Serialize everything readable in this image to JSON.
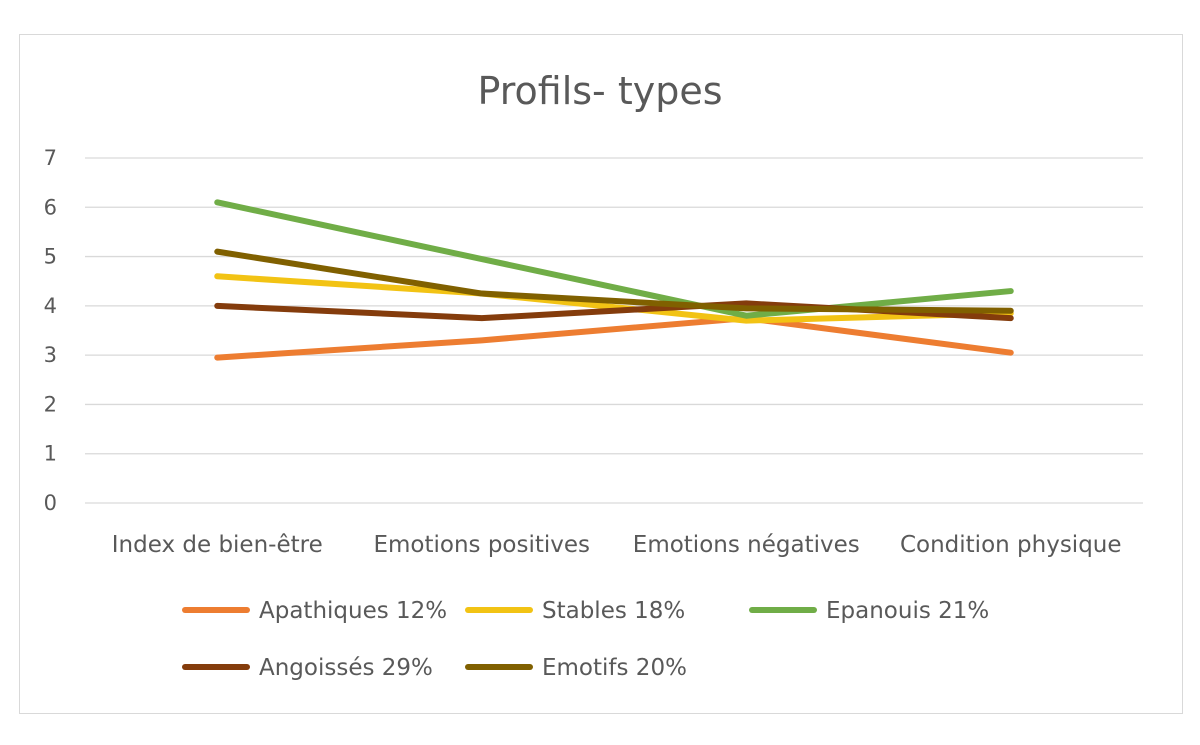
{
  "chart_data": {
    "type": "line",
    "title": "Profils- types",
    "xlabel": "",
    "ylabel": "",
    "categories": [
      "Index de bien-être",
      "Emotions positives",
      "Emotions négatives",
      "Condition physique"
    ],
    "ylim": [
      0,
      7
    ],
    "yticks": [
      "0",
      "1",
      "2",
      "3",
      "4",
      "5",
      "6",
      "7"
    ],
    "grid": true,
    "legend_position": "bottom",
    "series": [
      {
        "name": "Apathiques 12%",
        "color": "#ED7D31",
        "values": [
          2.95,
          3.3,
          3.75,
          3.05
        ]
      },
      {
        "name": "Stables 18%",
        "color": "#F2C314",
        "values": [
          4.6,
          4.25,
          3.7,
          3.85
        ]
      },
      {
        "name": "Epanouis 21%",
        "color": "#70AD47",
        "values": [
          6.1,
          4.95,
          3.8,
          4.3
        ]
      },
      {
        "name": "Angoissés 29%",
        "color": "#843C0C",
        "values": [
          4.0,
          3.75,
          4.05,
          3.75
        ]
      },
      {
        "name": "Emotifs 20%",
        "color": "#806000",
        "values": [
          5.1,
          4.25,
          3.95,
          3.9
        ]
      }
    ]
  }
}
